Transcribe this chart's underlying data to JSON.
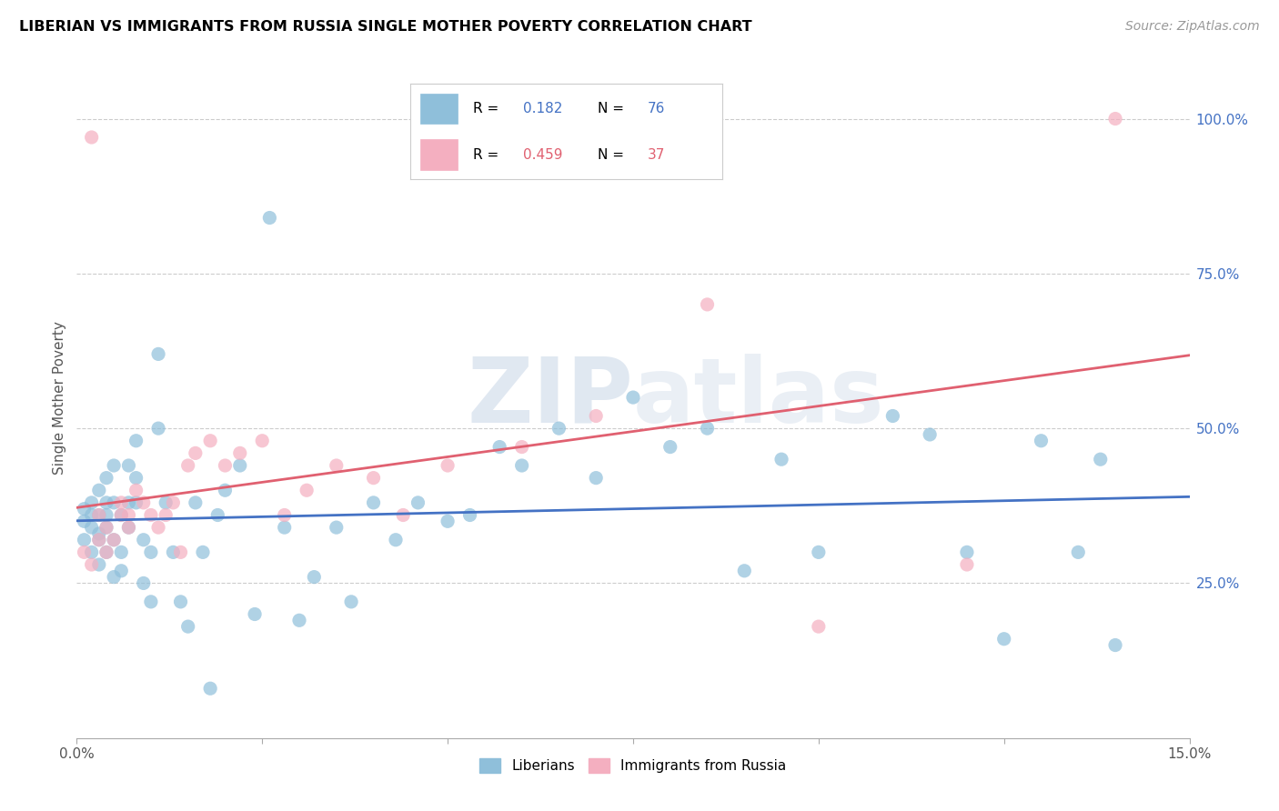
{
  "title": "LIBERIAN VS IMMIGRANTS FROM RUSSIA SINGLE MOTHER POVERTY CORRELATION CHART",
  "source": "Source: ZipAtlas.com",
  "ylabel": "Single Mother Poverty",
  "ytick_labels": [
    "25.0%",
    "50.0%",
    "75.0%",
    "100.0%"
  ],
  "ytick_positions": [
    0.25,
    0.5,
    0.75,
    1.0
  ],
  "legend_label1": "Liberians",
  "legend_label2": "Immigrants from Russia",
  "color_blue": "#8fbfda",
  "color_pink": "#f4afc0",
  "color_blue_line": "#4472c4",
  "color_pink_line": "#e06070",
  "color_blue_text": "#4472c4",
  "color_pink_text": "#e06070",
  "watermark_color": "#ccd9e8",
  "blue_points_x": [
    0.001,
    0.001,
    0.001,
    0.002,
    0.002,
    0.002,
    0.002,
    0.003,
    0.003,
    0.003,
    0.003,
    0.003,
    0.004,
    0.004,
    0.004,
    0.004,
    0.004,
    0.005,
    0.005,
    0.005,
    0.005,
    0.006,
    0.006,
    0.006,
    0.007,
    0.007,
    0.007,
    0.008,
    0.008,
    0.008,
    0.009,
    0.009,
    0.01,
    0.01,
    0.011,
    0.011,
    0.012,
    0.013,
    0.014,
    0.015,
    0.016,
    0.017,
    0.018,
    0.019,
    0.02,
    0.022,
    0.024,
    0.026,
    0.028,
    0.03,
    0.032,
    0.035,
    0.037,
    0.04,
    0.043,
    0.046,
    0.05,
    0.053,
    0.057,
    0.06,
    0.065,
    0.07,
    0.075,
    0.08,
    0.085,
    0.09,
    0.095,
    0.1,
    0.11,
    0.115,
    0.12,
    0.125,
    0.13,
    0.135,
    0.138,
    0.14
  ],
  "blue_points_y": [
    0.35,
    0.37,
    0.32,
    0.38,
    0.34,
    0.3,
    0.36,
    0.4,
    0.36,
    0.32,
    0.28,
    0.33,
    0.42,
    0.38,
    0.34,
    0.3,
    0.36,
    0.44,
    0.38,
    0.32,
    0.26,
    0.36,
    0.3,
    0.27,
    0.44,
    0.38,
    0.34,
    0.48,
    0.42,
    0.38,
    0.32,
    0.25,
    0.22,
    0.3,
    0.62,
    0.5,
    0.38,
    0.3,
    0.22,
    0.18,
    0.38,
    0.3,
    0.08,
    0.36,
    0.4,
    0.44,
    0.2,
    0.84,
    0.34,
    0.19,
    0.26,
    0.34,
    0.22,
    0.38,
    0.32,
    0.38,
    0.35,
    0.36,
    0.47,
    0.44,
    0.5,
    0.42,
    0.55,
    0.47,
    0.5,
    0.27,
    0.45,
    0.3,
    0.52,
    0.49,
    0.3,
    0.16,
    0.48,
    0.3,
    0.45,
    0.15
  ],
  "pink_points_x": [
    0.001,
    0.002,
    0.002,
    0.003,
    0.003,
    0.004,
    0.004,
    0.005,
    0.006,
    0.006,
    0.007,
    0.007,
    0.008,
    0.009,
    0.01,
    0.011,
    0.012,
    0.013,
    0.014,
    0.015,
    0.016,
    0.018,
    0.02,
    0.022,
    0.025,
    0.028,
    0.031,
    0.035,
    0.04,
    0.044,
    0.05,
    0.06,
    0.07,
    0.085,
    0.1,
    0.12,
    0.14
  ],
  "pink_points_y": [
    0.3,
    0.97,
    0.28,
    0.36,
    0.32,
    0.34,
    0.3,
    0.32,
    0.36,
    0.38,
    0.34,
    0.36,
    0.4,
    0.38,
    0.36,
    0.34,
    0.36,
    0.38,
    0.3,
    0.44,
    0.46,
    0.48,
    0.44,
    0.46,
    0.48,
    0.36,
    0.4,
    0.44,
    0.42,
    0.36,
    0.44,
    0.47,
    0.52,
    0.7,
    0.18,
    0.28,
    1.0
  ],
  "xlim": [
    0.0,
    0.15
  ],
  "ylim": [
    0.0,
    1.1
  ],
  "figsize": [
    14.06,
    8.92
  ],
  "dpi": 100
}
